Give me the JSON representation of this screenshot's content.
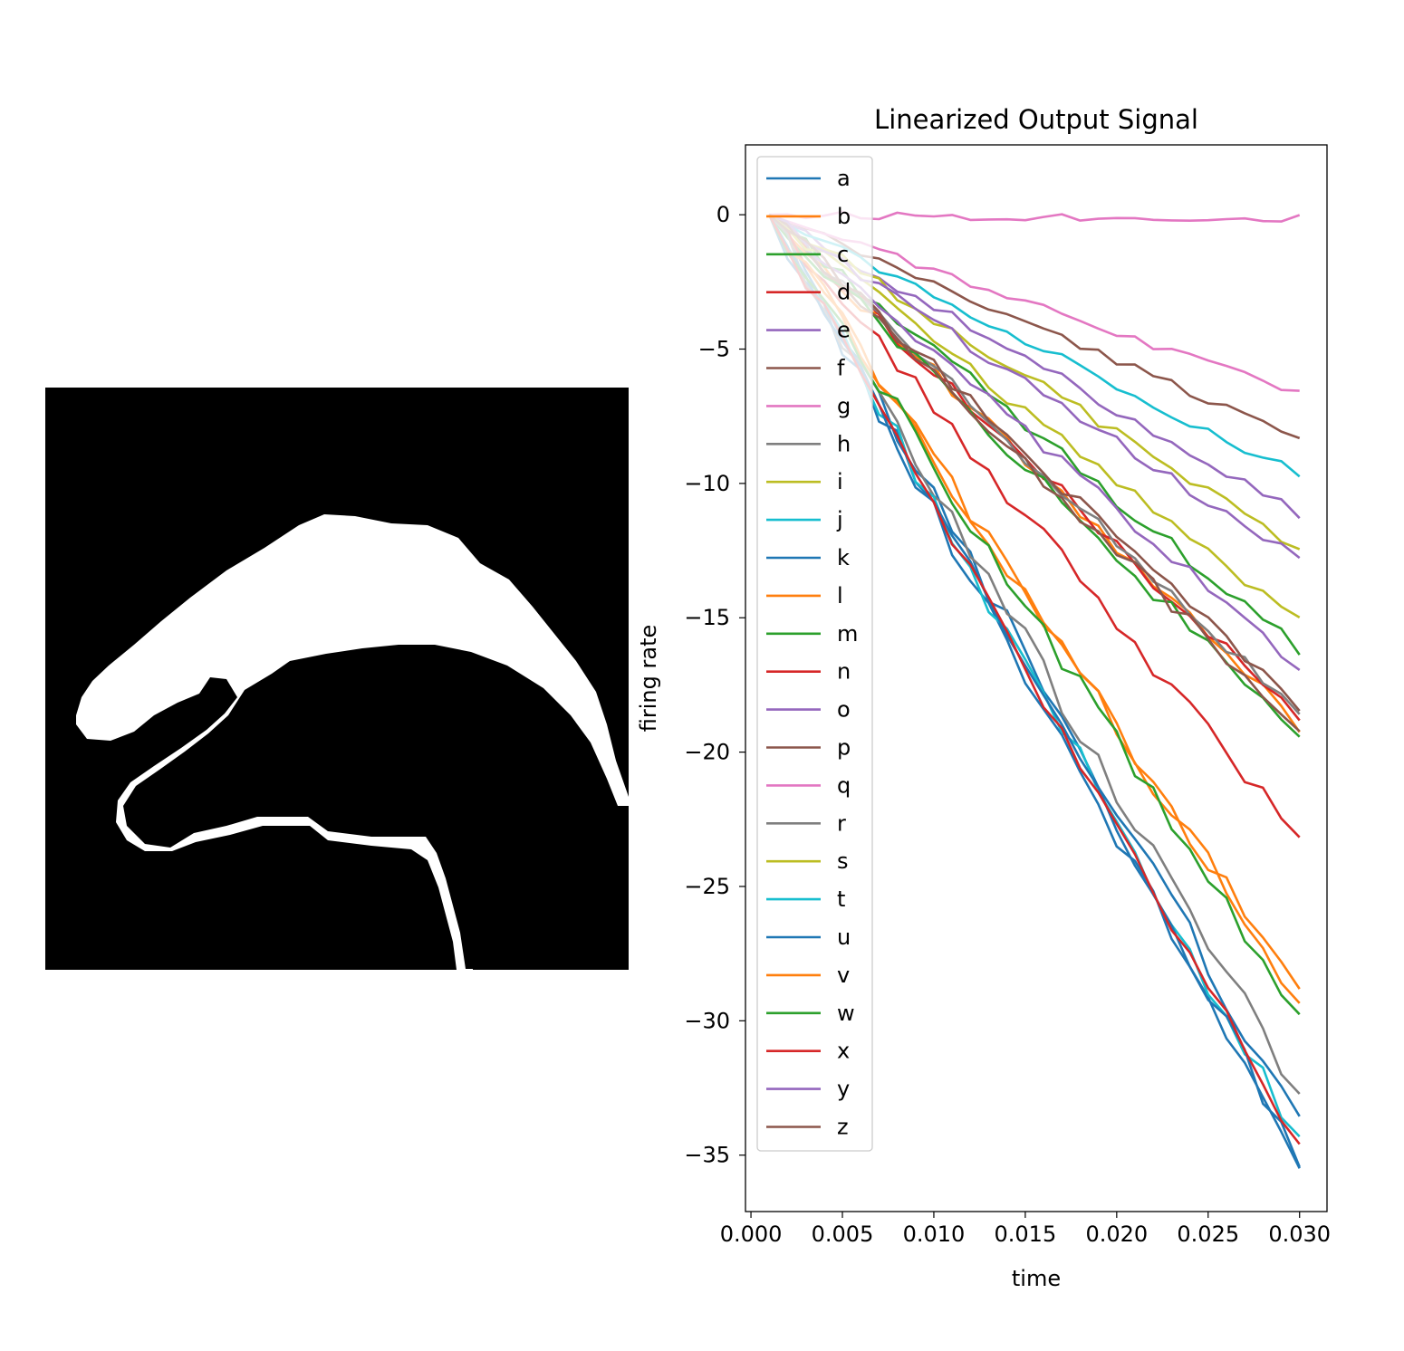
{
  "figure": {
    "image_panel": {
      "description_kind": "binary-pixel-image",
      "foreground": "#ffffff",
      "background": "#000000"
    },
    "chart_data": {
      "type": "line",
      "title": "Linearized Output Signal",
      "xlabel": "time",
      "ylabel": "firing rate",
      "xlim": [
        -0.0003,
        0.0315
      ],
      "ylim": [
        -37.1,
        2.6
      ],
      "xticks": [
        0.0,
        0.005,
        0.01,
        0.015,
        0.02,
        0.025,
        0.03
      ],
      "xtick_labels": [
        "0.000",
        "0.005",
        "0.010",
        "0.015",
        "0.020",
        "0.025",
        "0.030"
      ],
      "yticks": [
        0,
        -5,
        -10,
        -15,
        -20,
        -25,
        -30,
        -35
      ],
      "ytick_labels": [
        "0",
        "−5",
        "−10",
        "−15",
        "−20",
        "−25",
        "−30",
        "−35"
      ],
      "grid": false,
      "legend_position": "upper left",
      "x": [
        0.001,
        0.002,
        0.003,
        0.004,
        0.005,
        0.006,
        0.007,
        0.008,
        0.009,
        0.01,
        0.011,
        0.012,
        0.013,
        0.014,
        0.015,
        0.016,
        0.017,
        0.018,
        0.019,
        0.02,
        0.021,
        0.022,
        0.023,
        0.024,
        0.025,
        0.026,
        0.027,
        0.028,
        0.029,
        0.03
      ],
      "series": [
        {
          "name": "a",
          "color": "#1f77b4",
          "end": -35.3
        },
        {
          "name": "b",
          "color": "#ff7f0e",
          "end": -19.0
        },
        {
          "name": "c",
          "color": "#2ca02c",
          "end": -16.2
        },
        {
          "name": "d",
          "color": "#d62728",
          "end": -18.8
        },
        {
          "name": "e",
          "color": "#9467bd",
          "end": -11.1
        },
        {
          "name": "f",
          "color": "#8c564b",
          "end": -8.3
        },
        {
          "name": "g",
          "color": "#e377c2",
          "end": -0.15
        },
        {
          "name": "h",
          "color": "#7f7f7f",
          "end": -18.6
        },
        {
          "name": "i",
          "color": "#bcbd22",
          "end": -12.4
        },
        {
          "name": "j",
          "color": "#17becf",
          "end": -9.7
        },
        {
          "name": "k",
          "color": "#1f77b4",
          "end": -33.8
        },
        {
          "name": "l",
          "color": "#ff7f0e",
          "end": -29.1
        },
        {
          "name": "m",
          "color": "#2ca02c",
          "end": -19.4
        },
        {
          "name": "n",
          "color": "#d62728",
          "end": -23.2
        },
        {
          "name": "o",
          "color": "#9467bd",
          "end": -16.8
        },
        {
          "name": "p",
          "color": "#8c564b",
          "end": -19.1
        },
        {
          "name": "q",
          "color": "#e377c2",
          "end": -6.7
        },
        {
          "name": "r",
          "color": "#7f7f7f",
          "end": -32.8
        },
        {
          "name": "s",
          "color": "#bcbd22",
          "end": -15.1
        },
        {
          "name": "t",
          "color": "#17becf",
          "end": -34.6
        },
        {
          "name": "u",
          "color": "#1f77b4",
          "end": -35.0
        },
        {
          "name": "v",
          "color": "#ff7f0e",
          "end": -29.2
        },
        {
          "name": "w",
          "color": "#2ca02c",
          "end": -30.0
        },
        {
          "name": "x",
          "color": "#d62728",
          "end": -34.8
        },
        {
          "name": "y",
          "color": "#9467bd",
          "end": -12.9
        },
        {
          "name": "z",
          "color": "#8c564b",
          "end": -18.3
        }
      ]
    }
  }
}
